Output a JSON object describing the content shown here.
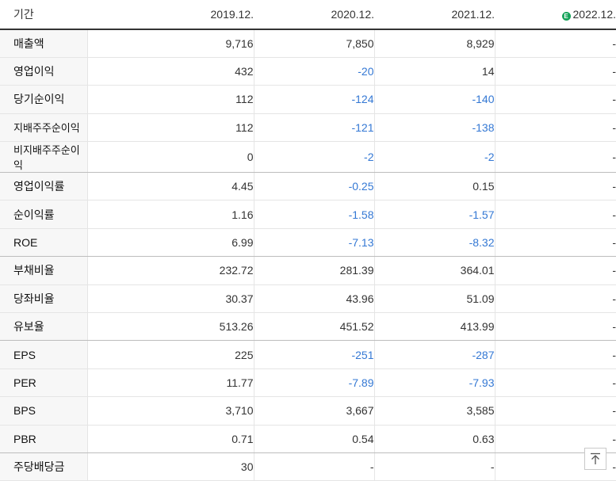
{
  "header": {
    "label": "기간",
    "columns": [
      "2019.12.",
      "2020.12.",
      "2021.12.",
      "2022.12."
    ],
    "estimate_icon": "E"
  },
  "rows": [
    {
      "label": "매출액",
      "values": [
        "9,716",
        "7,850",
        "8,929",
        "-"
      ]
    },
    {
      "label": "영업이익",
      "values": [
        "432",
        "-20",
        "14",
        "-"
      ]
    },
    {
      "label": "당기순이익",
      "values": [
        "112",
        "-124",
        "-140",
        "-"
      ]
    },
    {
      "label": "지배주주순이익",
      "values": [
        "112",
        "-121",
        "-138",
        "-"
      ]
    },
    {
      "label": "비지배주주순이익",
      "values": [
        "0",
        "-2",
        "-2",
        "-"
      ]
    },
    {
      "label": "영업이익률",
      "values": [
        "4.45",
        "-0.25",
        "0.15",
        "-"
      ]
    },
    {
      "label": "순이익률",
      "values": [
        "1.16",
        "-1.58",
        "-1.57",
        "-"
      ]
    },
    {
      "label": "ROE",
      "values": [
        "6.99",
        "-7.13",
        "-8.32",
        "-"
      ]
    },
    {
      "label": "부채비율",
      "values": [
        "232.72",
        "281.39",
        "364.01",
        "-"
      ]
    },
    {
      "label": "당좌비율",
      "values": [
        "30.37",
        "43.96",
        "51.09",
        "-"
      ]
    },
    {
      "label": "유보율",
      "values": [
        "513.26",
        "451.52",
        "413.99",
        "-"
      ]
    },
    {
      "label": "EPS",
      "values": [
        "225",
        "-251",
        "-287",
        "-"
      ]
    },
    {
      "label": "PER",
      "values": [
        "11.77",
        "-7.89",
        "-7.93",
        "-"
      ]
    },
    {
      "label": "BPS",
      "values": [
        "3,710",
        "3,667",
        "3,585",
        "-"
      ]
    },
    {
      "label": "PBR",
      "values": [
        "0.71",
        "0.54",
        "0.63",
        "-"
      ]
    },
    {
      "label": "주당배당금",
      "values": [
        "30",
        "-",
        "-",
        "-"
      ]
    }
  ],
  "colors": {
    "negative": "#3478d4",
    "estimate_badge": "#16a35a"
  },
  "icons": {
    "scroll_top": "arrow-up-to-top-icon"
  }
}
